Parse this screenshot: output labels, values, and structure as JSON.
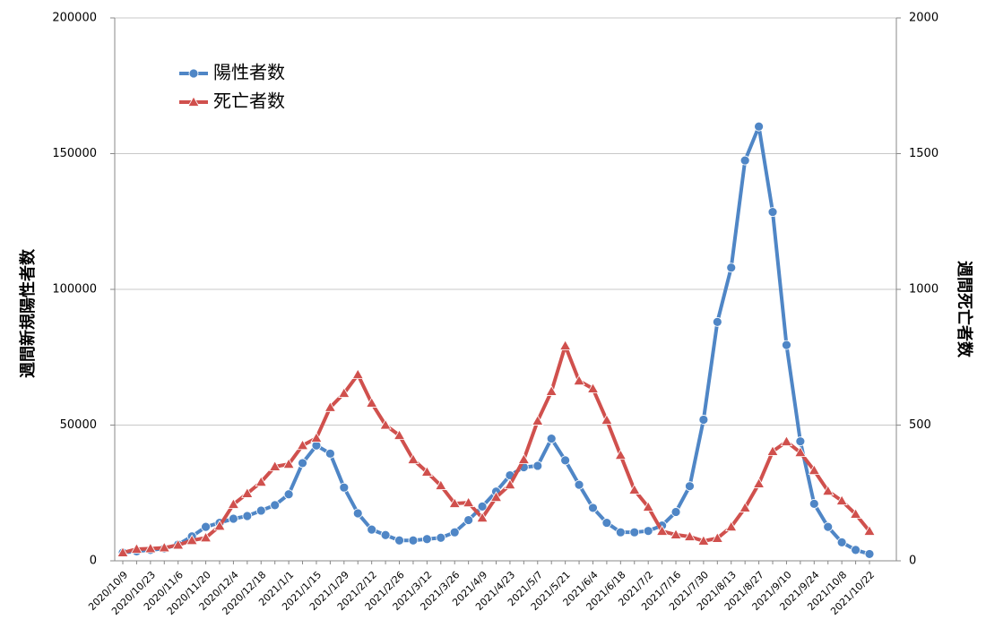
{
  "chart_data": {
    "type": "line",
    "categories": [
      "2020/10/9",
      null,
      "2020/10/23",
      null,
      "2020/11/6",
      null,
      "2020/11/20",
      null,
      "2020/12/4",
      null,
      "2020/12/18",
      null,
      "2021/1/1",
      null,
      "2021/1/15",
      null,
      "2021/1/29",
      null,
      "2021/2/12",
      null,
      "2021/2/26",
      null,
      "2021/3/12",
      null,
      "2021/3/26",
      null,
      "2021/4/9",
      null,
      "2021/4/23",
      null,
      "2021/5/7",
      null,
      "2021/5/21",
      null,
      "2021/6/4",
      null,
      "2021/6/18",
      null,
      "2021/7/2",
      null,
      "2021/7/16",
      null,
      "2021/7/30",
      null,
      "2021/8/13",
      null,
      "2021/8/27",
      null,
      "2021/9/10",
      null,
      "2021/9/24",
      null,
      "2021/10/8",
      null,
      "2021/10/22"
    ],
    "series": [
      {
        "name": "陽性者数",
        "color": "#4f86c6",
        "marker": "circle",
        "values": [
          3000,
          3500,
          4000,
          4500,
          6000,
          9000,
          12500,
          14000,
          15500,
          16500,
          18500,
          20500,
          24500,
          36000,
          42500,
          39500,
          27000,
          17500,
          11500,
          9500,
          7500,
          7500,
          8000,
          8500,
          10500,
          15000,
          20000,
          25500,
          31500,
          34500,
          35000,
          45000,
          37000,
          28000,
          19500,
          14000,
          10500,
          10500,
          11000,
          13000,
          18000,
          27500,
          52000,
          88000,
          108000,
          147500,
          160000,
          128500,
          79500,
          44000,
          21000,
          12500,
          6800,
          4000,
          2500
        ]
      },
      {
        "name": "死亡者数",
        "color": "#d0504d",
        "marker": "triangle",
        "axis": "y2",
        "values": [
          30,
          43,
          45,
          48,
          58,
          75,
          85,
          128,
          208,
          248,
          290,
          347,
          356,
          425,
          452,
          565,
          617,
          686,
          581,
          500,
          462,
          373,
          327,
          277,
          211,
          214,
          158,
          234,
          280,
          373,
          515,
          624,
          792,
          663,
          634,
          518,
          389,
          261,
          198,
          109,
          96,
          89,
          73,
          83,
          125,
          195,
          284,
          403,
          439,
          399,
          333,
          257,
          221,
          172,
          109
        ]
      }
    ],
    "y_label": "週間新規陽性者数",
    "y2_label": "週間死亡者数",
    "ylim": [
      0,
      200000
    ],
    "yticks": [
      0,
      50000,
      100000,
      150000,
      200000
    ],
    "y2lim": [
      0,
      2000
    ],
    "y2ticks": [
      0,
      500,
      1000,
      1500,
      2000
    ],
    "grid": true,
    "legend": "upper-left"
  }
}
